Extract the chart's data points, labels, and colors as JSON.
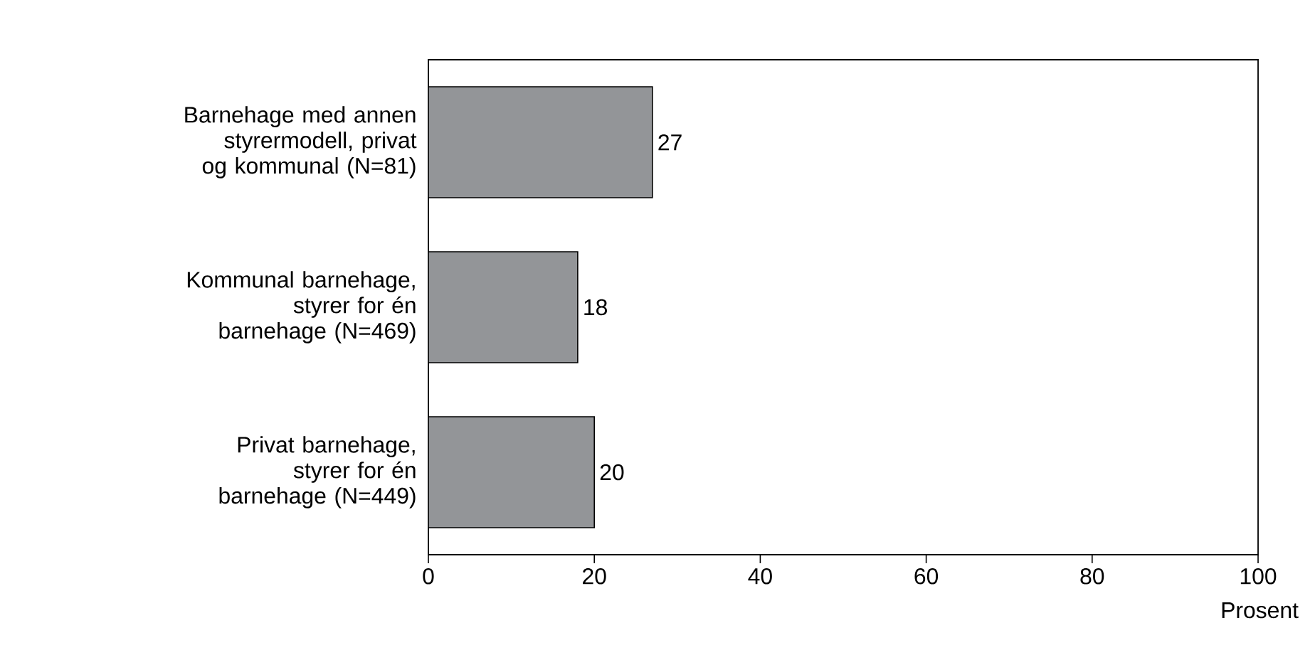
{
  "chart_data": {
    "type": "bar",
    "orientation": "horizontal",
    "xlabel": "Prosent",
    "categories": [
      "Barnehage med annen styrermodell, privat og kommunal (N=81)",
      "Kommunal barnehage, styrer for én barnehage (N=469)",
      "Privat barnehage, styrer for én barnehage (N=449)"
    ],
    "values": [
      27,
      18,
      20
    ],
    "color": "#939598",
    "data_labels": true,
    "xlim": [
      0,
      100
    ],
    "xticks": [
      0,
      20,
      40,
      60,
      80,
      100
    ]
  }
}
